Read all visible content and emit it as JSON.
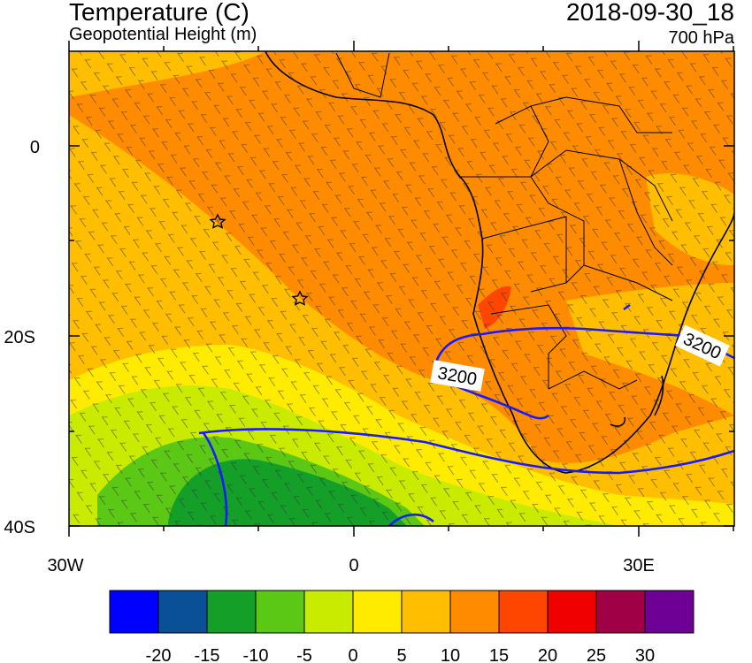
{
  "header": {
    "title_left": "Temperature (C)",
    "subtitle_left": "Geopotential Height (m)",
    "title_right": "2018-09-30_18",
    "subtitle_right": "700 hPa"
  },
  "axes": {
    "lat_labels": [
      "0",
      "20S",
      "40S"
    ],
    "lon_labels": [
      "30W",
      "0",
      "30E"
    ]
  },
  "contours": {
    "label_a": "3200",
    "label_b": "3200",
    "color": "#1a1aff"
  },
  "markers": {
    "icon": "star-icon",
    "count": 2
  },
  "colorbar": {
    "colors": [
      "#0000ff",
      "#0a5096",
      "#14a028",
      "#5ac814",
      "#c8eb00",
      "#ffeb00",
      "#ffbe00",
      "#ff8c00",
      "#ff4600",
      "#f00000",
      "#a00046",
      "#6e0096"
    ],
    "labels": [
      "-20",
      "-15",
      "-10",
      "-5",
      "0",
      "5",
      "10",
      "15",
      "20",
      "25",
      "30"
    ]
  }
}
